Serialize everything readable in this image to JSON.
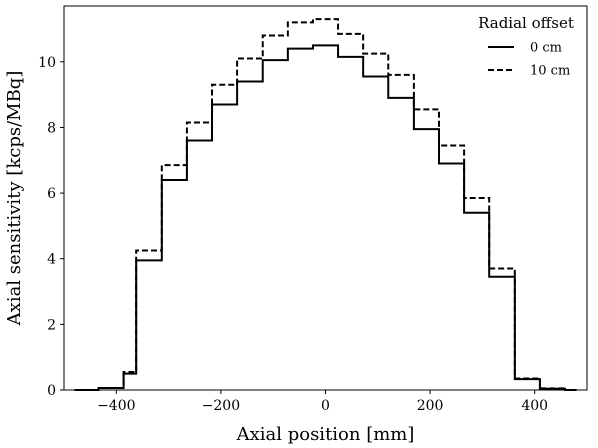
{
  "chart_data": {
    "type": "line",
    "step": "post",
    "title": "",
    "xlabel": "Axial position [mm]",
    "ylabel": "Axial sensitivity [kcps/MBq]",
    "xlim": [
      -500,
      500
    ],
    "ylim": [
      0,
      11.7
    ],
    "xticks": [
      -400,
      -200,
      0,
      200,
      400
    ],
    "xtick_labels": [
      "−400",
      "−200",
      "0",
      "200",
      "400"
    ],
    "yticks": [
      0,
      2,
      4,
      6,
      8,
      10
    ],
    "ytick_labels": [
      "0",
      "2",
      "4",
      "6",
      "8",
      "10"
    ],
    "grid": false,
    "x_edges": [
      -480,
      -434,
      -386,
      -362,
      -313,
      -265,
      -217,
      -169,
      -120,
      -72,
      -24,
      24,
      72,
      120,
      169,
      217,
      265,
      313,
      362,
      410,
      458,
      480
    ],
    "series": [
      {
        "name": "0 cm",
        "line_style": "solid",
        "color": "#000000",
        "values": [
          0.0,
          0.06,
          0.5,
          3.95,
          6.4,
          7.6,
          8.7,
          9.4,
          10.05,
          10.4,
          10.5,
          10.15,
          9.55,
          8.9,
          7.95,
          6.9,
          5.4,
          3.45,
          0.33,
          0.04,
          0.0
        ]
      },
      {
        "name": "10 cm",
        "line_style": "dashed",
        "color": "#000000",
        "values": [
          0.0,
          0.06,
          0.55,
          4.25,
          6.85,
          8.15,
          9.3,
          10.1,
          10.8,
          11.2,
          11.3,
          10.85,
          10.25,
          9.6,
          8.55,
          7.45,
          5.85,
          3.7,
          0.35,
          0.05,
          0.0
        ]
      }
    ],
    "legend": {
      "title": "Radial offset",
      "placement": "top-right"
    }
  }
}
